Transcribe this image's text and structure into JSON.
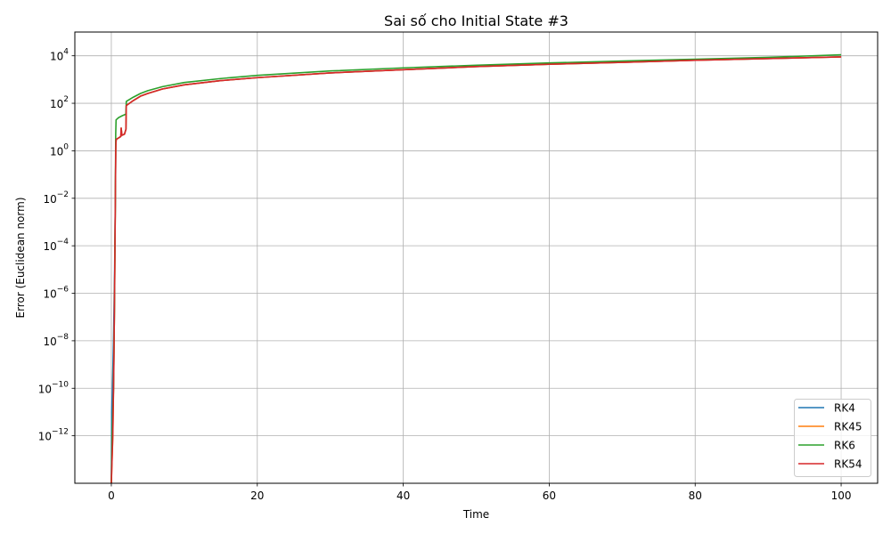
{
  "chart_data": {
    "type": "line",
    "title": "Sai số cho Initial State #3",
    "xlabel": "Time",
    "ylabel": "Error (Euclidean norm)",
    "xlim": [
      -5,
      105
    ],
    "ylim": [
      1e-14,
      100000.0
    ],
    "yscale": "log",
    "grid": true,
    "legend_position": "lower-right",
    "x_ticks": [
      0,
      20,
      40,
      60,
      80,
      100
    ],
    "x_tick_labels": [
      "0",
      "20",
      "40",
      "60",
      "80",
      "100"
    ],
    "y_ticks": [
      {
        "value": 1e-12,
        "base": "10",
        "exp": "−12"
      },
      {
        "value": 1e-10,
        "base": "10",
        "exp": "−10"
      },
      {
        "value": 1e-08,
        "base": "10",
        "exp": "−8"
      },
      {
        "value": 1e-06,
        "base": "10",
        "exp": "−6"
      },
      {
        "value": 0.0001,
        "base": "10",
        "exp": "−4"
      },
      {
        "value": 0.01,
        "base": "10",
        "exp": "−2"
      },
      {
        "value": 1,
        "base": "10",
        "exp": "0"
      },
      {
        "value": 100,
        "base": "10",
        "exp": "2"
      },
      {
        "value": 10000,
        "base": "10",
        "exp": "4"
      }
    ],
    "series": [
      {
        "name": "RK4",
        "color": "#1f77b4",
        "points": [
          [
            0,
            1e-14
          ],
          [
            0.05,
            1e-11
          ],
          [
            0.15,
            1e-10
          ],
          [
            0.3,
            1e-08
          ],
          [
            0.45,
            1e-05
          ],
          [
            0.55,
            0.01
          ],
          [
            0.62,
            2
          ],
          [
            0.68,
            3
          ],
          [
            1.0,
            3.5
          ],
          [
            1.3,
            4
          ],
          [
            1.35,
            9
          ],
          [
            1.45,
            4.5
          ],
          [
            1.8,
            5
          ],
          [
            2.0,
            8
          ],
          [
            2.05,
            80
          ],
          [
            3,
            130
          ],
          [
            4,
            200
          ],
          [
            5,
            260
          ],
          [
            7,
            400
          ],
          [
            10,
            600
          ],
          [
            15,
            900
          ],
          [
            20,
            1200
          ],
          [
            30,
            1900
          ],
          [
            40,
            2600
          ],
          [
            50,
            3500
          ],
          [
            60,
            4400
          ],
          [
            70,
            5300
          ],
          [
            80,
            6500
          ],
          [
            90,
            7600
          ],
          [
            100,
            9000
          ]
        ]
      },
      {
        "name": "RK45",
        "color": "#ff7f0e",
        "points": [
          [
            0,
            1e-14
          ],
          [
            0.1,
            1e-13
          ],
          [
            0.2,
            1e-12
          ],
          [
            0.3,
            1e-10
          ],
          [
            0.45,
            1e-06
          ],
          [
            0.55,
            0.01
          ],
          [
            0.62,
            2
          ],
          [
            0.68,
            3
          ],
          [
            1.0,
            3.5
          ],
          [
            1.3,
            4
          ],
          [
            1.35,
            9
          ],
          [
            1.45,
            4.5
          ],
          [
            1.8,
            5
          ],
          [
            2.0,
            8
          ],
          [
            2.05,
            80
          ],
          [
            3,
            130
          ],
          [
            4,
            200
          ],
          [
            5,
            260
          ],
          [
            7,
            400
          ],
          [
            10,
            600
          ],
          [
            15,
            900
          ],
          [
            20,
            1200
          ],
          [
            30,
            1900
          ],
          [
            40,
            2600
          ],
          [
            50,
            3500
          ],
          [
            60,
            4400
          ],
          [
            70,
            5300
          ],
          [
            80,
            6500
          ],
          [
            90,
            7600
          ],
          [
            100,
            9000
          ]
        ]
      },
      {
        "name": "RK6",
        "color": "#2ca02c",
        "points": [
          [
            0,
            1e-14
          ],
          [
            0.1,
            1e-12
          ],
          [
            0.2,
            1e-11
          ],
          [
            0.3,
            1e-10
          ],
          [
            0.45,
            1e-06
          ],
          [
            0.55,
            0.01
          ],
          [
            0.6,
            5
          ],
          [
            0.65,
            20
          ],
          [
            1.0,
            25
          ],
          [
            1.5,
            30
          ],
          [
            2.0,
            35
          ],
          [
            2.05,
            120
          ],
          [
            3,
            180
          ],
          [
            4,
            260
          ],
          [
            5,
            340
          ],
          [
            7,
            500
          ],
          [
            10,
            750
          ],
          [
            15,
            1100
          ],
          [
            20,
            1500
          ],
          [
            30,
            2300
          ],
          [
            40,
            3100
          ],
          [
            50,
            4000
          ],
          [
            60,
            5000
          ],
          [
            70,
            6000
          ],
          [
            80,
            7200
          ],
          [
            90,
            8600
          ],
          [
            100,
            11000
          ]
        ]
      },
      {
        "name": "RK54",
        "color": "#d62728",
        "points": [
          [
            0,
            1e-14
          ],
          [
            0.1,
            1e-13
          ],
          [
            0.2,
            1e-12
          ],
          [
            0.35,
            1e-09
          ],
          [
            0.5,
            0.0001
          ],
          [
            0.6,
            1
          ],
          [
            0.65,
            3
          ],
          [
            1.0,
            3.5
          ],
          [
            1.3,
            4
          ],
          [
            1.35,
            9
          ],
          [
            1.45,
            4.5
          ],
          [
            1.8,
            5
          ],
          [
            2.0,
            8
          ],
          [
            2.05,
            80
          ],
          [
            3,
            130
          ],
          [
            4,
            200
          ],
          [
            5,
            260
          ],
          [
            7,
            400
          ],
          [
            10,
            600
          ],
          [
            15,
            900
          ],
          [
            20,
            1200
          ],
          [
            30,
            1900
          ],
          [
            40,
            2600
          ],
          [
            50,
            3500
          ],
          [
            60,
            4400
          ],
          [
            70,
            5300
          ],
          [
            80,
            6500
          ],
          [
            90,
            7600
          ],
          [
            100,
            9000
          ]
        ]
      }
    ]
  }
}
